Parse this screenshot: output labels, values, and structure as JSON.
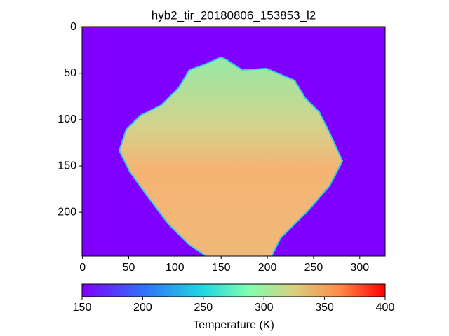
{
  "chart_data": {
    "type": "heatmap",
    "title": "hyb2_tir_20180806_153853_l2",
    "xlim": [
      -0.5,
      327.5
    ],
    "xticks": [
      0,
      50,
      100,
      150,
      200,
      250,
      300
    ],
    "ylim": [
      247.5,
      -0.5
    ],
    "yticks": [
      0,
      50,
      100,
      150,
      200
    ],
    "colorbar": {
      "label": "Temperature (K)",
      "clim": [
        150,
        400
      ],
      "ticks": [
        150,
        200,
        250,
        300,
        350,
        400
      ]
    }
  }
}
